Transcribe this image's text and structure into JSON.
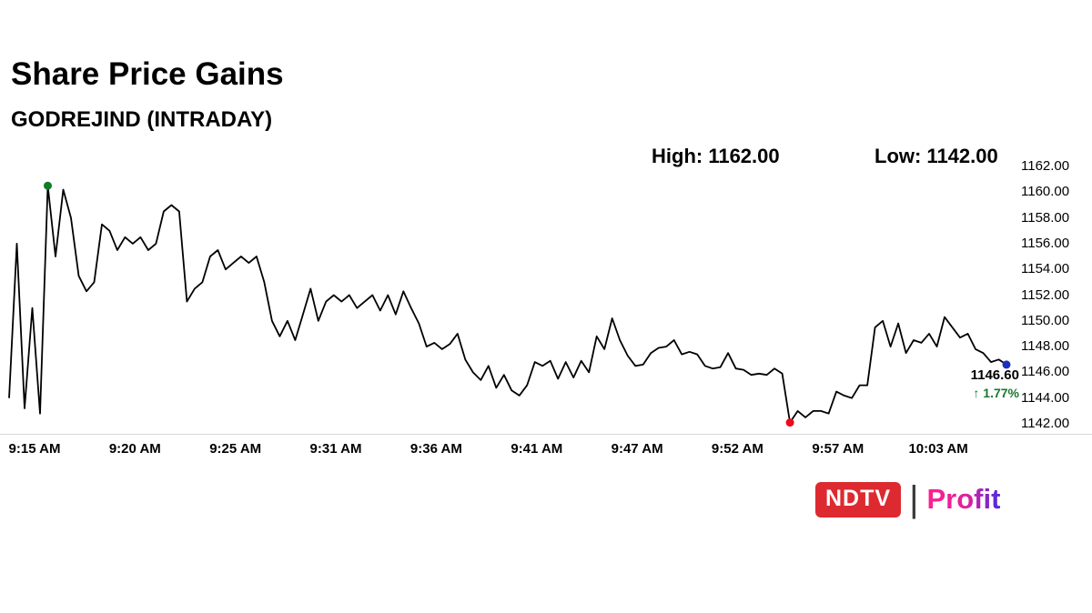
{
  "header": {
    "title": "Share Price Gains",
    "subtitle": "GODREJIND (INTRADAY)",
    "high_label": "High: 1162.00",
    "low_label": "Low: 1142.00"
  },
  "chart_data": {
    "type": "line",
    "title": "Share Price Gains",
    "subtitle": "GODREJIND (INTRADAY)",
    "series": [
      {
        "name": "GODREJIND intraday price",
        "values": [
          1144.0,
          1156.0,
          1143.2,
          1151.0,
          1142.8,
          1160.5,
          1155.0,
          1160.2,
          1158.0,
          1153.5,
          1152.3,
          1153.0,
          1157.5,
          1157.0,
          1155.5,
          1156.5,
          1156.0,
          1156.5,
          1155.5,
          1156.0,
          1158.5,
          1159.0,
          1158.5,
          1151.5,
          1152.5,
          1153.0,
          1155.0,
          1155.5,
          1154.0,
          1154.5,
          1155.0,
          1154.5,
          1155.0,
          1153.0,
          1150.0,
          1148.8,
          1150.0,
          1148.5,
          1150.5,
          1152.5,
          1150.0,
          1151.5,
          1152.0,
          1151.5,
          1152.0,
          1151.0,
          1151.5,
          1152.0,
          1150.8,
          1152.0,
          1150.5,
          1152.3,
          1151.0,
          1149.8,
          1148.0,
          1148.3,
          1147.8,
          1148.2,
          1149.0,
          1147.0,
          1146.0,
          1145.4,
          1146.5,
          1144.8,
          1145.8,
          1144.6,
          1144.2,
          1145.0,
          1146.8,
          1146.5,
          1146.9,
          1145.5,
          1146.8,
          1145.6,
          1146.9,
          1146.0,
          1148.8,
          1147.8,
          1150.2,
          1148.5,
          1147.3,
          1146.5,
          1146.6,
          1147.5,
          1147.9,
          1148.0,
          1148.5,
          1147.4,
          1147.6,
          1147.4,
          1146.5,
          1146.3,
          1146.4,
          1147.5,
          1146.3,
          1146.2,
          1145.8,
          1145.9,
          1145.8,
          1146.3,
          1145.9,
          1142.1,
          1143.0,
          1142.5,
          1143.0,
          1143.0,
          1142.8,
          1144.5,
          1144.2,
          1144.0,
          1145.0,
          1145.0,
          1149.5,
          1150.0,
          1148.0,
          1149.8,
          1147.5,
          1148.5,
          1148.3,
          1149.0,
          1148.0,
          1150.3,
          1149.5,
          1148.7,
          1149.0,
          1147.8,
          1147.5,
          1146.8,
          1147.0,
          1146.6
        ]
      }
    ],
    "x_tick_labels": [
      "9:15 AM",
      "9:20 AM",
      "9:25 AM",
      "9:31 AM",
      "9:36 AM",
      "9:41 AM",
      "9:47 AM",
      "9:52 AM",
      "9:57 AM",
      "10:03 AM"
    ],
    "y_tick_labels": [
      "1162.00",
      "1160.00",
      "1158.00",
      "1156.00",
      "1154.00",
      "1152.00",
      "1150.00",
      "1148.00",
      "1146.00",
      "1144.00",
      "1142.00"
    ],
    "ylim": [
      1142,
      1162
    ],
    "high": 1162.0,
    "low": 1142.0,
    "last": 1146.6,
    "change_percent": 1.77,
    "grid": false,
    "legend": "none",
    "line_color": "#000000",
    "marker_colors": {
      "high": "#0d7d2c",
      "low": "#ee0a1e",
      "last": "#1b2fbe"
    }
  },
  "annotation": {
    "last_price": "1146.60",
    "arrow": "↑",
    "change": "1.77%",
    "change_color": "#16792f"
  },
  "footer": {
    "ndtv": "NDTV",
    "separator": "|",
    "profit": "Profit",
    "ndtv_bg_color": "#dd2a30",
    "profit_color_start": "#ff1f8f",
    "profit_color_end": "#4b2be0"
  }
}
